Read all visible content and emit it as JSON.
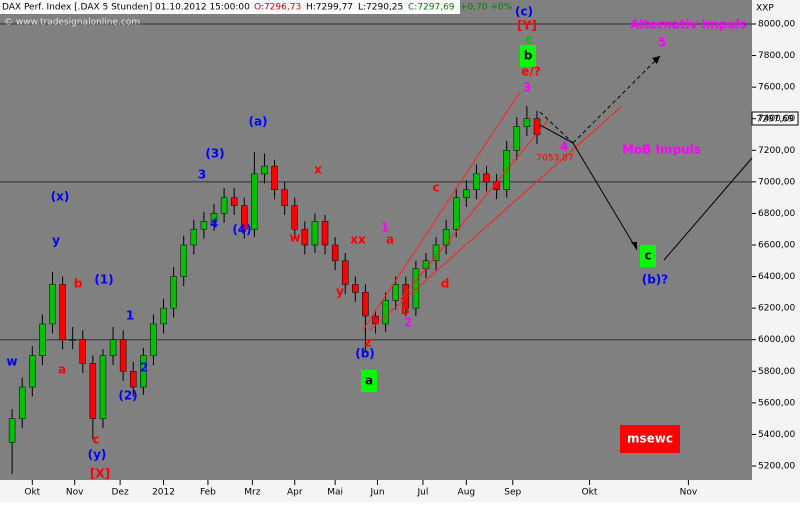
{
  "header": {
    "title": "DAX Perf. Index [.DAX  5 Stunden] 01.10.2012 15:00:00",
    "open": "O:7296,73",
    "high": "H:7299,77",
    "low": "L:7290,25",
    "close": "C:7297,69",
    "change": "+0,70 +0%",
    "watermark": "© www.tradesignalonline.com",
    "axis_unit": "XXP",
    "last_price": "7297,69"
  },
  "chart_data": {
    "type": "candlestick",
    "x": [
      0,
      1,
      2,
      3,
      4,
      5,
      6,
      7,
      8,
      9,
      10,
      11,
      12,
      13,
      14,
      15,
      16,
      17,
      18,
      19,
      20,
      21,
      22,
      23,
      24,
      25,
      26,
      27,
      28,
      29,
      30,
      31,
      32,
      33,
      34,
      35,
      36,
      37,
      38,
      39,
      40,
      41,
      42,
      43,
      44,
      45,
      46,
      47,
      48,
      49,
      50,
      51,
      52
    ],
    "open": [
      5350,
      5500,
      5700,
      5900,
      6100,
      6350,
      6000,
      6000,
      5850,
      5500,
      5900,
      6000,
      5800,
      5700,
      5900,
      6100,
      6200,
      6400,
      6600,
      6700,
      6750,
      6800,
      6900,
      6850,
      6700,
      7050,
      7100,
      6950,
      6850,
      6700,
      6600,
      6750,
      6600,
      6500,
      6350,
      6300,
      6150,
      6100,
      6250,
      6350,
      6200,
      6450,
      6500,
      6600,
      6700,
      6900,
      6950,
      7050,
      7000,
      6950,
      7200,
      7350,
      7400
    ],
    "high": [
      5560,
      5760,
      5960,
      6160,
      6430,
      6400,
      6080,
      6060,
      5900,
      5940,
      6080,
      6060,
      5860,
      5950,
      6160,
      6260,
      6460,
      6660,
      6760,
      6810,
      6860,
      6960,
      6960,
      6900,
      7190,
      7180,
      7140,
      7000,
      6900,
      6750,
      6800,
      6790,
      6650,
      6550,
      6400,
      6350,
      6180,
      6300,
      6400,
      6400,
      6500,
      6550,
      6650,
      6760,
      6960,
      7010,
      7110,
      7100,
      7050,
      7260,
      7410,
      7480,
      7450
    ],
    "low": [
      5150,
      5440,
      5640,
      5840,
      6040,
      5940,
      5940,
      5790,
      5370,
      5440,
      5840,
      5740,
      5640,
      5650,
      5840,
      6040,
      6140,
      6340,
      6540,
      6640,
      6690,
      6740,
      6790,
      6640,
      6650,
      6990,
      6890,
      6790,
      6640,
      6540,
      6550,
      6540,
      6440,
      6290,
      6240,
      5920,
      6040,
      6050,
      6190,
      6150,
      6150,
      6390,
      6440,
      6540,
      6650,
      6840,
      6890,
      6940,
      6890,
      6900,
      7140,
      7290,
      7240
    ],
    "close": [
      5500,
      5700,
      5900,
      6100,
      6350,
      6000,
      6000,
      5850,
      5500,
      5900,
      6000,
      5800,
      5700,
      5900,
      6100,
      6200,
      6400,
      6600,
      6700,
      6750,
      6800,
      6900,
      6850,
      6700,
      7050,
      7100,
      6950,
      6850,
      6700,
      6600,
      6750,
      6600,
      6500,
      6350,
      6300,
      6150,
      6100,
      6250,
      6350,
      6200,
      6450,
      6500,
      6600,
      6700,
      6900,
      6950,
      7050,
      7000,
      6950,
      7200,
      7350,
      7400,
      7300
    ],
    "up_color": "#00c000",
    "down_color": "#ff0000",
    "xlim": [
      -1.2,
      73.3
    ],
    "xticks": [
      {
        "value": 2,
        "label": "Okt"
      },
      {
        "value": 6.2,
        "label": "Nov"
      },
      {
        "value": 10.7,
        "label": "Dez"
      },
      {
        "value": 15,
        "label": "2012"
      },
      {
        "value": 19.4,
        "label": "Feb"
      },
      {
        "value": 23.8,
        "label": "Mrz"
      },
      {
        "value": 28,
        "label": "Apr"
      },
      {
        "value": 32,
        "label": "Mai"
      },
      {
        "value": 36.2,
        "label": "Jun"
      },
      {
        "value": 40.7,
        "label": "Jul"
      },
      {
        "value": 45,
        "label": "Aug"
      },
      {
        "value": 49.6,
        "label": "Sep"
      },
      {
        "value": 57.2,
        "label": "Okt"
      },
      {
        "value": 67,
        "label": "Nov"
      }
    ],
    "ylim": [
      5124,
      8152
    ],
    "yticks": [
      {
        "value": 5200,
        "label": "5200,00"
      },
      {
        "value": 5400,
        "label": "5400,00"
      },
      {
        "value": 5600,
        "label": "5600,00"
      },
      {
        "value": 5800,
        "label": "5800,00"
      },
      {
        "value": 6000,
        "label": "6000,00"
      },
      {
        "value": 6200,
        "label": "6200,00"
      },
      {
        "value": 6400,
        "label": "6400,00"
      },
      {
        "value": 6600,
        "label": "6600,00"
      },
      {
        "value": 6800,
        "label": "6800,00"
      },
      {
        "value": 7000,
        "label": "7000,00"
      },
      {
        "value": 7200,
        "label": "7200,00"
      },
      {
        "value": 7400,
        "label": "7400,00"
      },
      {
        "value": 7600,
        "label": "7600,00"
      },
      {
        "value": 7800,
        "label": "7800,00"
      },
      {
        "value": 8000,
        "label": "8000,00"
      }
    ],
    "annotations": [
      {
        "text": "(x)",
        "color": "#0000ff"
      },
      {
        "text": "y",
        "color": "#0000ff"
      },
      {
        "text": "w",
        "color": "#0000ff"
      },
      {
        "text": "(1)",
        "color": "#0000ff"
      },
      {
        "text": "1",
        "color": "#0000ff"
      },
      {
        "text": "2",
        "color": "#0000ff"
      },
      {
        "text": "(2)",
        "color": "#0000ff"
      },
      {
        "text": "3",
        "color": "#0000ff"
      },
      {
        "text": "(3)",
        "color": "#0000ff"
      },
      {
        "text": "4",
        "color": "#0000ff"
      },
      {
        "text": "(4)",
        "color": "#0000ff"
      },
      {
        "text": "(a)",
        "color": "#0000ff"
      },
      {
        "text": "(b)",
        "color": "#0000ff"
      },
      {
        "text": "(y)",
        "color": "#0000ff"
      },
      {
        "text": "(c)",
        "color": "#0000ff"
      },
      {
        "text": "(b)?",
        "color": "#0000ff"
      },
      {
        "text": "[X]",
        "color": "#ff0000"
      },
      {
        "text": "[Y]",
        "color": "#ff0000"
      },
      {
        "text": "c",
        "color": "#ff0000"
      },
      {
        "text": "a",
        "color": "#ff0000"
      },
      {
        "text": "b",
        "color": "#ff0000"
      },
      {
        "text": "x",
        "color": "#ff0000"
      },
      {
        "text": "w",
        "color": "#ff0000"
      },
      {
        "text": "y",
        "color": "#ff0000"
      },
      {
        "text": "xx",
        "color": "#ff0000"
      },
      {
        "text": "a",
        "color": "#ff0000"
      },
      {
        "text": "b",
        "color": "#ff0000"
      },
      {
        "text": "c",
        "color": "#ff0000"
      },
      {
        "text": "d",
        "color": "#ff0000"
      },
      {
        "text": "e/?",
        "color": "#ff0000"
      },
      {
        "text": "z",
        "color": "#ff0000"
      },
      {
        "text": "Alternativ Impuls",
        "color": "#ff00ff"
      },
      {
        "text": "5",
        "color": "#ff00ff"
      },
      {
        "text": "3",
        "color": "#ff00ff"
      },
      {
        "text": "1",
        "color": "#ff00ff"
      },
      {
        "text": "2",
        "color": "#ff00ff"
      },
      {
        "text": "4",
        "color": "#ff00ff"
      },
      {
        "text": "MoB Impuls",
        "color": "#ff00ff"
      },
      {
        "text": "b",
        "color": "#000000"
      },
      {
        "text": "c",
        "color": "#00c000"
      },
      {
        "text": "a",
        "color": "#000000"
      },
      {
        "text": "c",
        "color": "#000000"
      },
      {
        "text": "7053,87",
        "color": "#ff0000"
      },
      {
        "text": "msewc",
        "color": "#ffffff"
      }
    ]
  }
}
